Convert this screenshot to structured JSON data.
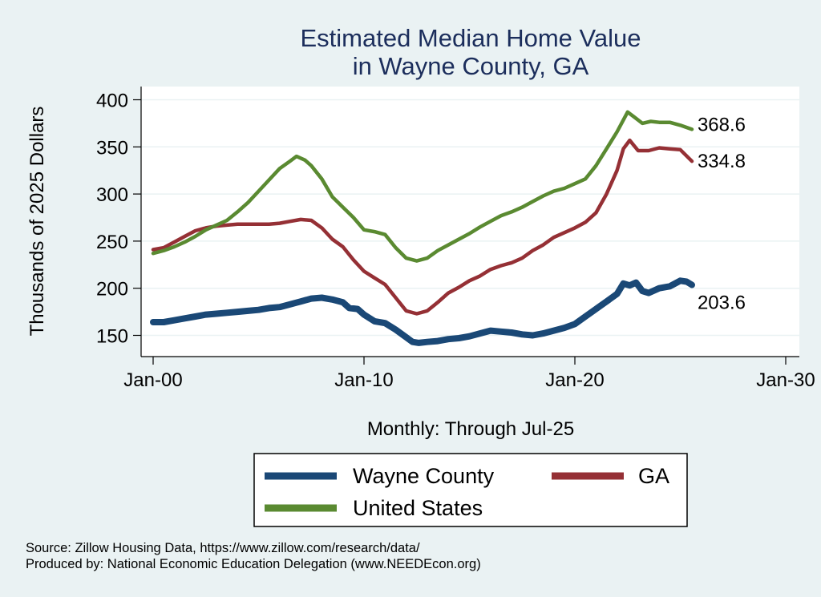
{
  "chart_data": {
    "type": "line",
    "title": [
      "Estimated Median Home Value",
      "in Wayne County, GA"
    ],
    "xlabel": "Monthly: Through Jul-25",
    "ylabel": "Thousands of 2025 Dollars",
    "x_ticks": [
      "Jan-00",
      "Jan-10",
      "Jan-20",
      "Jan-30"
    ],
    "xlim": [
      2000,
      2030
    ],
    "ylim": [
      150,
      400
    ],
    "y_ticks": [
      150,
      200,
      250,
      300,
      350,
      400
    ],
    "grid": true,
    "legend_position": "bottom",
    "series": [
      {
        "name": "Wayne County",
        "color": "#1a4876",
        "end_label": "203.6",
        "points": [
          [
            2000.0,
            164
          ],
          [
            2000.5,
            164
          ],
          [
            2001.0,
            166
          ],
          [
            2001.5,
            168
          ],
          [
            2002.0,
            170
          ],
          [
            2002.5,
            172
          ],
          [
            2003.0,
            173
          ],
          [
            2003.5,
            174
          ],
          [
            2004.0,
            175
          ],
          [
            2004.5,
            176
          ],
          [
            2005.0,
            177
          ],
          [
            2005.5,
            179
          ],
          [
            2006.0,
            180
          ],
          [
            2006.5,
            183
          ],
          [
            2007.0,
            186
          ],
          [
            2007.5,
            189
          ],
          [
            2008.0,
            190
          ],
          [
            2008.5,
            188
          ],
          [
            2009.0,
            185
          ],
          [
            2009.3,
            179
          ],
          [
            2009.7,
            178
          ],
          [
            2010.0,
            172
          ],
          [
            2010.5,
            165
          ],
          [
            2011.0,
            163
          ],
          [
            2011.5,
            156
          ],
          [
            2012.0,
            148
          ],
          [
            2012.3,
            143
          ],
          [
            2012.6,
            142
          ],
          [
            2013.0,
            143
          ],
          [
            2013.5,
            144
          ],
          [
            2014.0,
            146
          ],
          [
            2014.5,
            147
          ],
          [
            2015.0,
            149
          ],
          [
            2015.5,
            152
          ],
          [
            2016.0,
            155
          ],
          [
            2016.5,
            154
          ],
          [
            2017.0,
            153
          ],
          [
            2017.5,
            151
          ],
          [
            2018.0,
            150
          ],
          [
            2018.5,
            152
          ],
          [
            2019.0,
            155
          ],
          [
            2019.5,
            158
          ],
          [
            2020.0,
            162
          ],
          [
            2020.5,
            170
          ],
          [
            2021.0,
            178
          ],
          [
            2021.5,
            186
          ],
          [
            2022.0,
            194
          ],
          [
            2022.3,
            205
          ],
          [
            2022.6,
            203
          ],
          [
            2022.9,
            206
          ],
          [
            2023.2,
            197
          ],
          [
            2023.5,
            195
          ],
          [
            2024.0,
            200
          ],
          [
            2024.5,
            202
          ],
          [
            2025.0,
            208
          ],
          [
            2025.3,
            207
          ],
          [
            2025.55,
            203.6
          ]
        ]
      },
      {
        "name": "GA",
        "color": "#953035",
        "end_label": "334.8",
        "points": [
          [
            2000.0,
            241
          ],
          [
            2000.5,
            243
          ],
          [
            2001.0,
            249
          ],
          [
            2001.5,
            255
          ],
          [
            2002.0,
            261
          ],
          [
            2002.5,
            264
          ],
          [
            2003.0,
            266
          ],
          [
            2003.5,
            267
          ],
          [
            2004.0,
            268
          ],
          [
            2004.5,
            268
          ],
          [
            2005.0,
            268
          ],
          [
            2005.5,
            268
          ],
          [
            2006.0,
            269
          ],
          [
            2006.5,
            271
          ],
          [
            2007.0,
            273
          ],
          [
            2007.5,
            272
          ],
          [
            2008.0,
            264
          ],
          [
            2008.5,
            252
          ],
          [
            2009.0,
            244
          ],
          [
            2009.5,
            230
          ],
          [
            2010.0,
            218
          ],
          [
            2010.5,
            211
          ],
          [
            2011.0,
            204
          ],
          [
            2011.5,
            190
          ],
          [
            2012.0,
            176
          ],
          [
            2012.5,
            173
          ],
          [
            2013.0,
            176
          ],
          [
            2013.5,
            185
          ],
          [
            2014.0,
            195
          ],
          [
            2014.5,
            201
          ],
          [
            2015.0,
            208
          ],
          [
            2015.5,
            213
          ],
          [
            2016.0,
            220
          ],
          [
            2016.5,
            224
          ],
          [
            2017.0,
            227
          ],
          [
            2017.5,
            232
          ],
          [
            2018.0,
            240
          ],
          [
            2018.5,
            246
          ],
          [
            2019.0,
            254
          ],
          [
            2019.5,
            259
          ],
          [
            2020.0,
            264
          ],
          [
            2020.5,
            270
          ],
          [
            2021.0,
            280
          ],
          [
            2021.5,
            300
          ],
          [
            2022.0,
            325
          ],
          [
            2022.3,
            348
          ],
          [
            2022.6,
            357
          ],
          [
            2023.0,
            346
          ],
          [
            2023.5,
            346
          ],
          [
            2024.0,
            349
          ],
          [
            2024.5,
            348
          ],
          [
            2025.0,
            347
          ],
          [
            2025.55,
            334.8
          ]
        ]
      },
      {
        "name": "United States",
        "color": "#5a8a31",
        "end_label": "368.6",
        "points": [
          [
            2000.0,
            237
          ],
          [
            2000.5,
            240
          ],
          [
            2001.0,
            244
          ],
          [
            2001.5,
            249
          ],
          [
            2002.0,
            255
          ],
          [
            2002.5,
            262
          ],
          [
            2003.0,
            267
          ],
          [
            2003.5,
            272
          ],
          [
            2004.0,
            281
          ],
          [
            2004.5,
            291
          ],
          [
            2005.0,
            303
          ],
          [
            2005.5,
            315
          ],
          [
            2006.0,
            327
          ],
          [
            2006.5,
            335
          ],
          [
            2006.8,
            340
          ],
          [
            2007.2,
            336
          ],
          [
            2007.5,
            330
          ],
          [
            2008.0,
            316
          ],
          [
            2008.5,
            297
          ],
          [
            2009.0,
            286
          ],
          [
            2009.5,
            275
          ],
          [
            2010.0,
            262
          ],
          [
            2010.5,
            260
          ],
          [
            2011.0,
            257
          ],
          [
            2011.5,
            243
          ],
          [
            2012.0,
            232
          ],
          [
            2012.5,
            229
          ],
          [
            2013.0,
            232
          ],
          [
            2013.5,
            240
          ],
          [
            2014.0,
            246
          ],
          [
            2014.5,
            252
          ],
          [
            2015.0,
            258
          ],
          [
            2015.5,
            265
          ],
          [
            2016.0,
            271
          ],
          [
            2016.5,
            277
          ],
          [
            2017.0,
            281
          ],
          [
            2017.5,
            286
          ],
          [
            2018.0,
            292
          ],
          [
            2018.5,
            298
          ],
          [
            2019.0,
            303
          ],
          [
            2019.5,
            306
          ],
          [
            2020.0,
            311
          ],
          [
            2020.5,
            316
          ],
          [
            2021.0,
            330
          ],
          [
            2021.5,
            348
          ],
          [
            2022.0,
            366
          ],
          [
            2022.5,
            387
          ],
          [
            2022.8,
            382
          ],
          [
            2023.2,
            375
          ],
          [
            2023.6,
            377
          ],
          [
            2024.0,
            376
          ],
          [
            2024.5,
            376
          ],
          [
            2025.0,
            373
          ],
          [
            2025.55,
            368.6
          ]
        ]
      }
    ],
    "notes": [
      "Source: Zillow Housing Data, https://www.zillow.com/research/data/",
      "Produced by: National Economic Education Delegation (www.NEEDEcon.org)"
    ]
  },
  "colors": {
    "background": "#eaf2f3",
    "plot_background": "#ffffff",
    "title": "#1c2e5c",
    "grid": "#eaf2f3"
  }
}
